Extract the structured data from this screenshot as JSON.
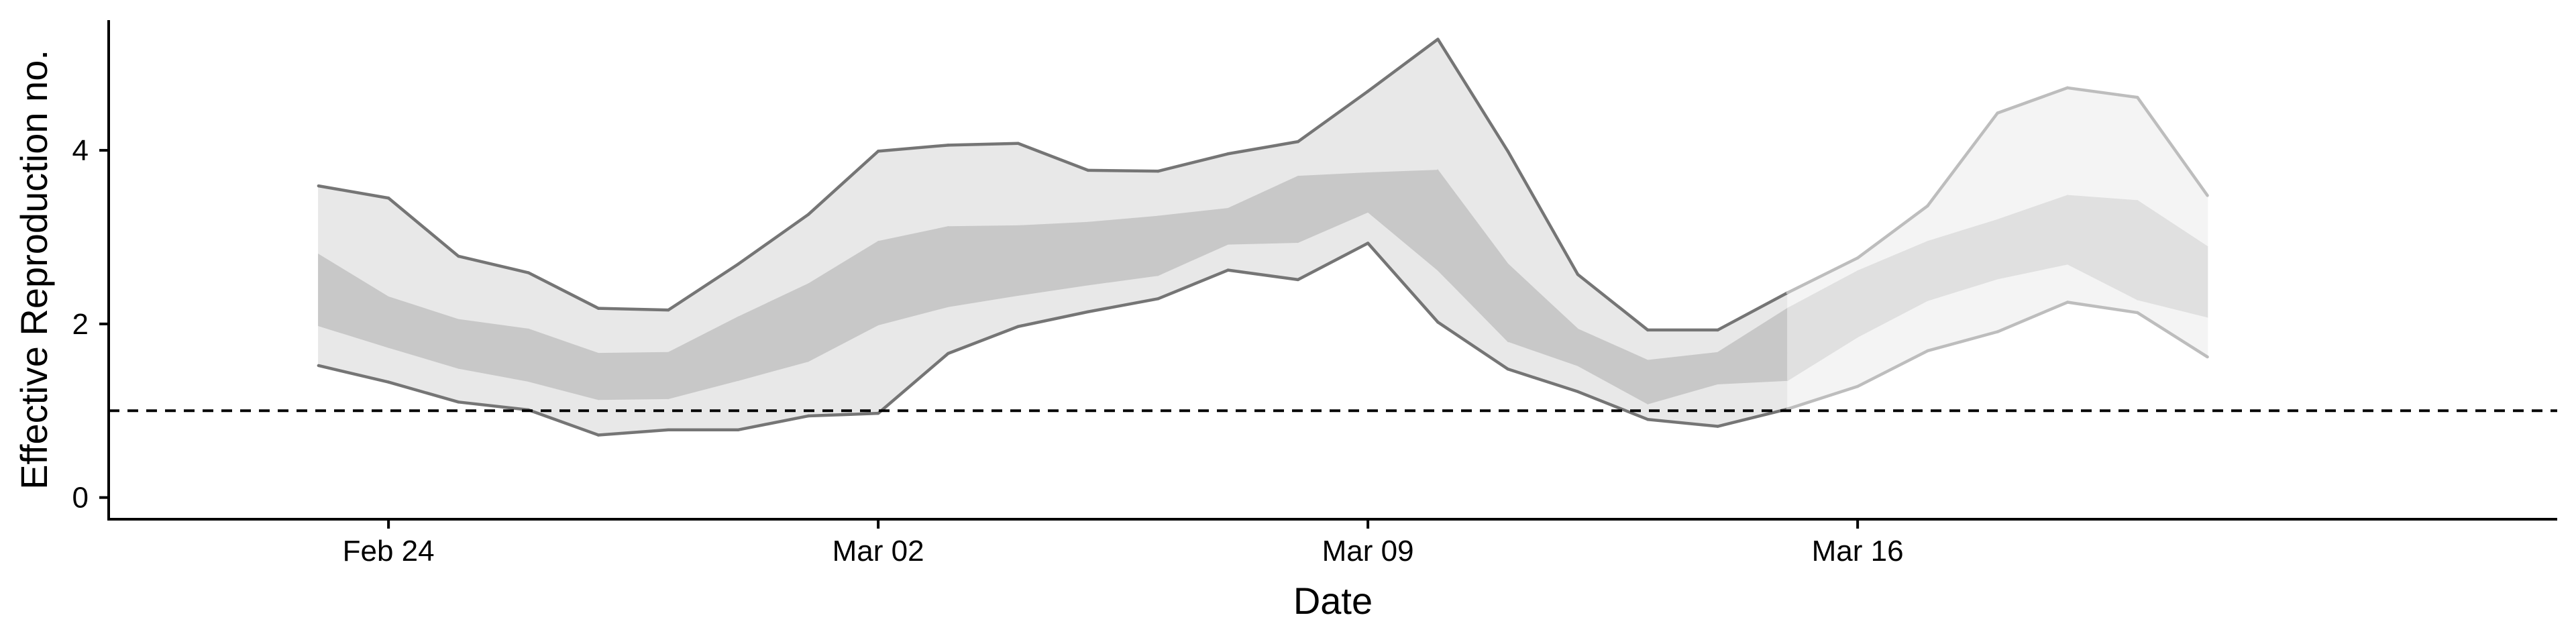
{
  "chart_data": {
    "type": "area",
    "xlabel": "Date",
    "ylabel": "Effective Reproduction no.",
    "x_ticks": [
      {
        "date": "2020-02-24",
        "label": "Feb 24"
      },
      {
        "date": "2020-03-02",
        "label": "Mar 02"
      },
      {
        "date": "2020-03-09",
        "label": "Mar 09"
      },
      {
        "date": "2020-03-16",
        "label": "Mar 16"
      }
    ],
    "y_ticks": [
      0,
      2,
      4
    ],
    "xlim": [
      "2020-02-20",
      "2020-03-26"
    ],
    "ylim": [
      -0.25,
      5.5
    ],
    "reference_line": {
      "y": 1,
      "style": "dashed"
    },
    "grid": false,
    "colors": {
      "outer_band": "#e8e8e8",
      "inner_band": "#c8c8c8",
      "bound_line": "#757575",
      "outer_band_estimate": "#f4f4f4",
      "inner_band_estimate": "#e0e0e0",
      "bound_line_estimate": "#bdbdbd"
    },
    "dates": [
      "2020-02-23",
      "2020-02-24",
      "2020-02-25",
      "2020-02-26",
      "2020-02-27",
      "2020-02-28",
      "2020-02-29",
      "2020-03-01",
      "2020-03-02",
      "2020-03-03",
      "2020-03-04",
      "2020-03-05",
      "2020-03-06",
      "2020-03-07",
      "2020-03-08",
      "2020-03-09",
      "2020-03-10",
      "2020-03-11",
      "2020-03-12",
      "2020-03-13",
      "2020-03-14",
      "2020-03-15",
      "2020-03-16",
      "2020-03-17",
      "2020-03-18",
      "2020-03-19",
      "2020-03-20",
      "2020-03-21"
    ],
    "series": [
      {
        "values": [
          1.52,
          1.33,
          1.1,
          1.01,
          0.72,
          0.78,
          0.78,
          0.94,
          0.97,
          1.66,
          1.97,
          2.14,
          2.29,
          2.62,
          2.51,
          2.93,
          2.02,
          1.48,
          1.22,
          0.9,
          0.82,
          1.02,
          1.28,
          1.69,
          1.91,
          2.25,
          2.13,
          1.62
        ]
      },
      {
        "values": [
          1.98,
          1.73,
          1.49,
          1.34,
          1.13,
          1.14,
          1.35,
          1.57,
          1.99,
          2.2,
          2.33,
          2.45,
          2.56,
          2.92,
          2.94,
          3.29,
          2.62,
          1.8,
          1.52,
          1.08,
          1.31,
          1.35,
          1.85,
          2.27,
          2.52,
          2.69,
          2.28,
          2.08
        ]
      },
      {
        "values": [
          2.8,
          2.31,
          2.05,
          1.94,
          1.66,
          1.67,
          2.08,
          2.46,
          2.95,
          3.12,
          3.13,
          3.17,
          3.24,
          3.33,
          3.7,
          3.74,
          3.77,
          2.69,
          1.94,
          1.58,
          1.67,
          2.18,
          2.61,
          2.95,
          3.2,
          3.48,
          3.42,
          2.89
        ]
      },
      {
        "values": [
          3.59,
          3.45,
          2.78,
          2.59,
          2.18,
          2.16,
          2.69,
          3.26,
          3.99,
          4.06,
          4.08,
          3.77,
          3.76,
          3.96,
          4.1,
          4.68,
          5.28,
          3.99,
          2.57,
          1.93,
          1.93,
          2.36,
          2.76,
          3.36,
          4.43,
          4.72,
          4.61,
          3.48
        ]
      }
    ],
    "band_estimate_start": "2020-03-15"
  }
}
